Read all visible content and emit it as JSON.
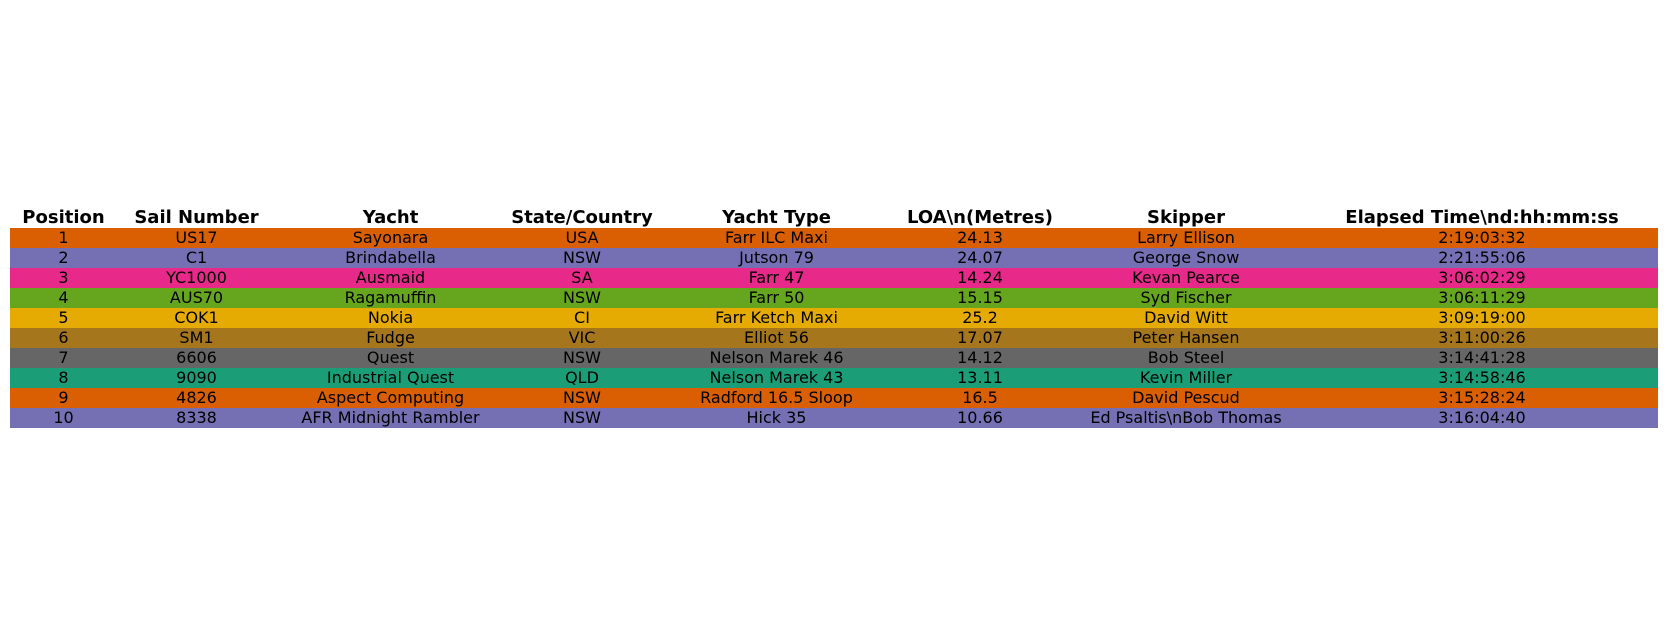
{
  "chart_data": {
    "type": "table",
    "columns": [
      "Position",
      "Sail Number",
      "Yacht",
      "State/Country",
      "Yacht Type",
      "LOA\\n(Metres)",
      "Skipper",
      "Elapsed Time\\nd:hh:mm:ss"
    ],
    "rows": [
      [
        "1",
        "US17",
        "Sayonara",
        "USA",
        "Farr ILC Maxi",
        "24.13",
        "Larry Ellison",
        "2:19:03:32"
      ],
      [
        "2",
        "C1",
        "Brindabella",
        "NSW",
        "Jutson 79",
        "24.07",
        "George Snow",
        "2:21:55:06"
      ],
      [
        "3",
        "YC1000",
        "Ausmaid",
        "SA",
        "Farr 47",
        "14.24",
        "Kevan Pearce",
        "3:06:02:29"
      ],
      [
        "4",
        "AUS70",
        "Ragamuffin",
        "NSW",
        "Farr 50",
        "15.15",
        "Syd Fischer",
        "3:06:11:29"
      ],
      [
        "5",
        "COK1",
        "Nokia",
        "CI",
        "Farr Ketch Maxi",
        "25.2",
        "David Witt",
        "3:09:19:00"
      ],
      [
        "6",
        "SM1",
        "Fudge",
        "VIC",
        "Elliot 56",
        "17.07",
        "Peter Hansen",
        "3:11:00:26"
      ],
      [
        "7",
        "6606",
        "Quest",
        "NSW",
        "Nelson Marek 46",
        "14.12",
        "Bob Steel",
        "3:14:41:28"
      ],
      [
        "8",
        "9090",
        "Industrial Quest",
        "QLD",
        "Nelson Marek 43",
        "13.11",
        "Kevin Miller",
        "3:14:58:46"
      ],
      [
        "9",
        "4826",
        "Aspect Computing",
        "NSW",
        "Radford 16.5 Sloop",
        "16.5",
        "David Pescud",
        "3:15:28:24"
      ],
      [
        "10",
        "8338",
        "AFR Midnight Rambler",
        "NSW",
        "Hick 35",
        "10.66",
        "Ed Psaltis\\nBob Thomas",
        "3:16:04:40"
      ]
    ],
    "row_colors": [
      "#d95f02",
      "#7570b3",
      "#e7298a",
      "#66a61e",
      "#e6ab02",
      "#a6761d",
      "#666666",
      "#1b9e77",
      "#d95f02",
      "#7570b3"
    ]
  }
}
